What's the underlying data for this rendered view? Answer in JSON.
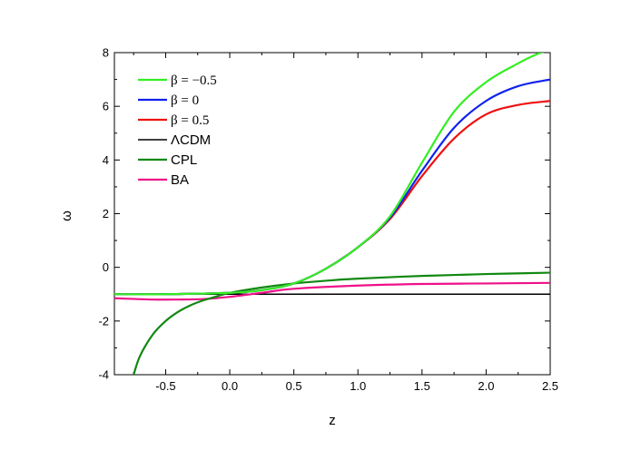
{
  "chart_data": {
    "type": "line",
    "title": "",
    "xlabel": "z",
    "ylabel": "ω",
    "xlim": [
      -0.9,
      2.5
    ],
    "ylim": [
      -4,
      8
    ],
    "xticks": [
      -0.5,
      0.0,
      0.5,
      1.0,
      1.5,
      2.0,
      2.5
    ],
    "xtick_labels": [
      "-0.5",
      "0.0",
      "0.5",
      "1.0",
      "1.5",
      "2.0",
      "2.5"
    ],
    "yticks": [
      -4,
      -2,
      0,
      2,
      4,
      6,
      8
    ],
    "ytick_labels": [
      "-4",
      "-2",
      "0",
      "2",
      "4",
      "6",
      "8"
    ],
    "grid": false,
    "legend_position": "top-left",
    "series": [
      {
        "name": "β = −0.5",
        "color": "#33ee22",
        "x": [
          -0.9,
          -0.5,
          0.0,
          0.25,
          0.5,
          0.75,
          1.0,
          1.25,
          1.5,
          1.75,
          2.0,
          2.25,
          2.4,
          2.5
        ],
        "y": [
          -1.0,
          -1.0,
          -0.95,
          -0.85,
          -0.6,
          -0.05,
          0.75,
          1.9,
          3.9,
          5.8,
          6.9,
          7.6,
          7.95,
          8.1
        ]
      },
      {
        "name": "β = 0",
        "color": "#1122ee",
        "x": [
          -0.9,
          -0.5,
          0.0,
          0.25,
          0.5,
          0.75,
          1.0,
          1.25,
          1.5,
          1.75,
          2.0,
          2.25,
          2.5
        ],
        "y": [
          -1.0,
          -1.0,
          -0.95,
          -0.85,
          -0.6,
          -0.05,
          0.75,
          1.85,
          3.6,
          5.2,
          6.2,
          6.75,
          7.0
        ]
      },
      {
        "name": "β = 0.5",
        "color": "#ee1111",
        "x": [
          -0.9,
          -0.5,
          0.0,
          0.25,
          0.5,
          0.75,
          1.0,
          1.25,
          1.5,
          1.75,
          2.0,
          2.25,
          2.5
        ],
        "y": [
          -1.0,
          -1.0,
          -0.95,
          -0.85,
          -0.6,
          -0.05,
          0.75,
          1.8,
          3.4,
          4.8,
          5.7,
          6.05,
          6.2
        ]
      },
      {
        "name": "ΛCDM",
        "color": "#000000",
        "x": [
          -0.9,
          2.5
        ],
        "y": [
          -1.0,
          -1.0
        ]
      },
      {
        "name": "CPL",
        "color": "#118811",
        "x": [
          -0.75,
          -0.7,
          -0.6,
          -0.5,
          -0.4,
          -0.3,
          -0.2,
          -0.1,
          0.0,
          0.25,
          0.5,
          0.75,
          1.0,
          1.5,
          2.0,
          2.5
        ],
        "y": [
          -4.0,
          -3.3,
          -2.5,
          -2.0,
          -1.65,
          -1.4,
          -1.22,
          -1.08,
          -0.95,
          -0.75,
          -0.6,
          -0.5,
          -0.42,
          -0.32,
          -0.25,
          -0.2
        ]
      },
      {
        "name": "BA",
        "color": "#ee1188",
        "x": [
          -0.9,
          -0.6,
          -0.4,
          -0.2,
          0.0,
          0.25,
          0.5,
          1.0,
          1.5,
          2.0,
          2.5
        ],
        "y": [
          -1.15,
          -1.2,
          -1.2,
          -1.18,
          -1.1,
          -0.95,
          -0.8,
          -0.68,
          -0.62,
          -0.6,
          -0.58
        ]
      }
    ]
  }
}
